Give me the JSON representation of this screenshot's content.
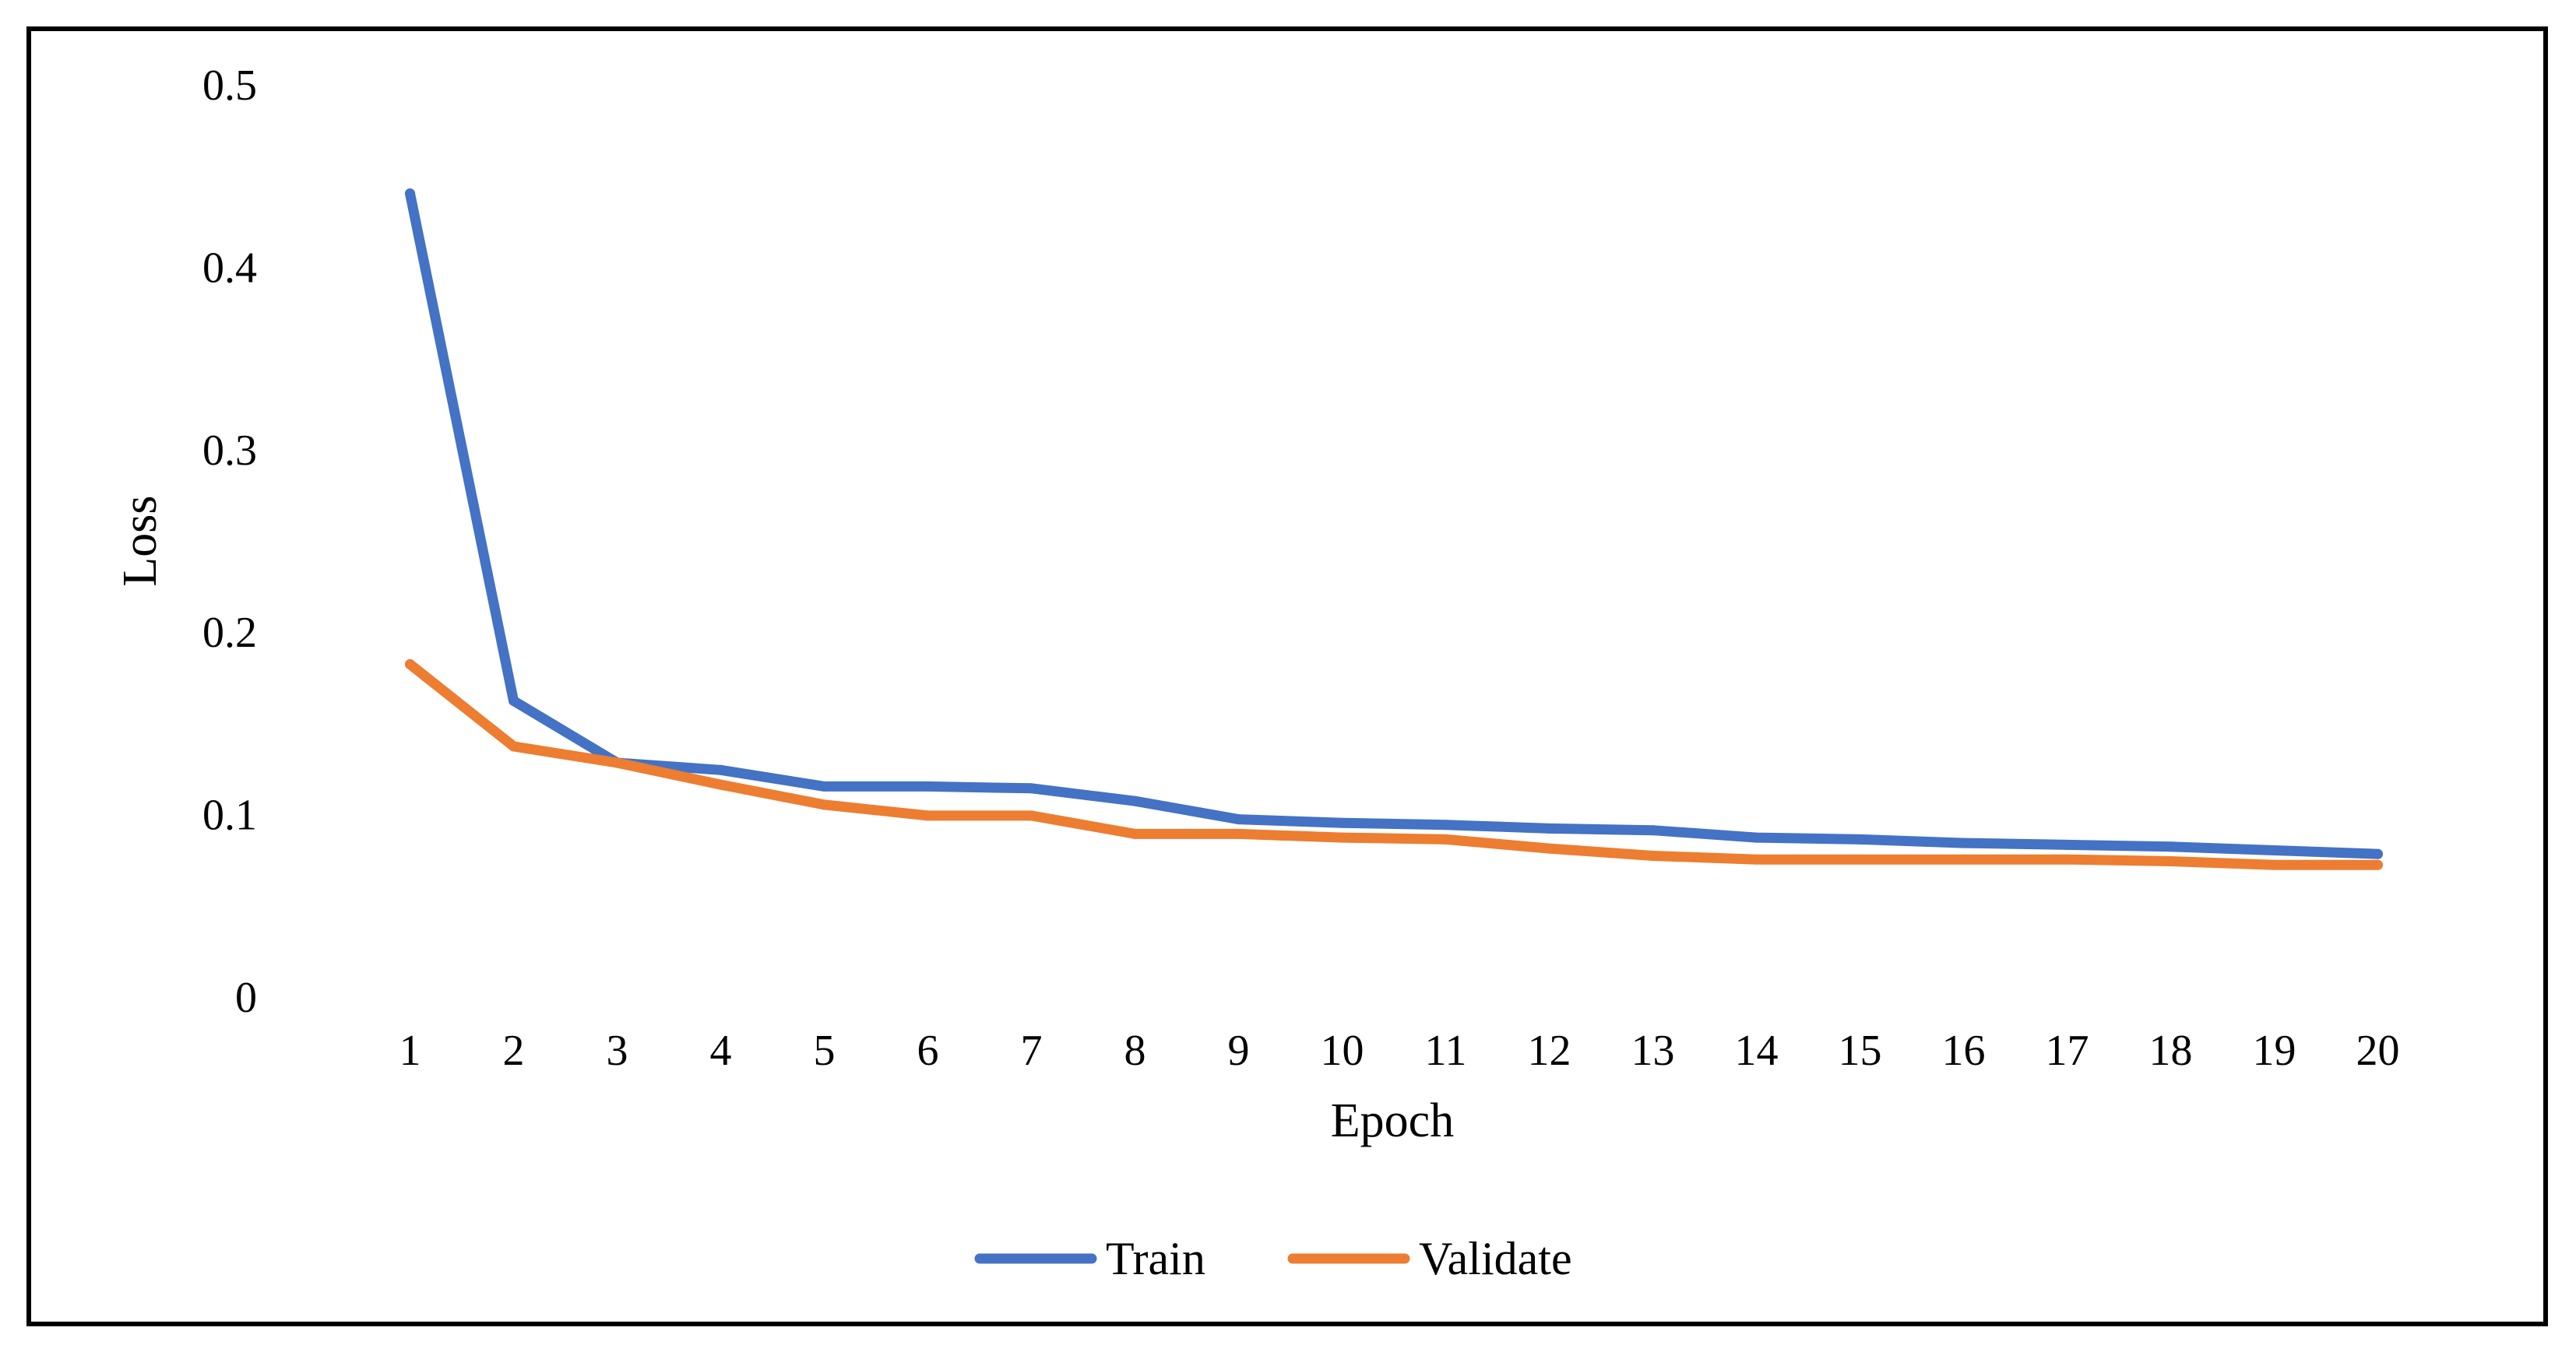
{
  "chart_data": {
    "type": "line",
    "title": "",
    "xlabel": "Epoch",
    "ylabel": "Loss",
    "categories": [
      "1",
      "2",
      "3",
      "4",
      "5",
      "6",
      "7",
      "8",
      "9",
      "10",
      "11",
      "12",
      "13",
      "14",
      "15",
      "16",
      "17",
      "18",
      "19",
      "20"
    ],
    "ylim": [
      0,
      0.5
    ],
    "yticks": [
      "0",
      "0.1",
      "0.2",
      "0.3",
      "0.4",
      "0.5"
    ],
    "grid": false,
    "legend_position": "bottom",
    "series": [
      {
        "name": "Train",
        "color": "#4472C4",
        "values": [
          0.44,
          0.162,
          0.128,
          0.124,
          0.115,
          0.115,
          0.114,
          0.107,
          0.097,
          0.095,
          0.094,
          0.092,
          0.091,
          0.087,
          0.086,
          0.084,
          0.083,
          0.082,
          0.08,
          0.078
        ]
      },
      {
        "name": "Validate",
        "color": "#ED7D31",
        "values": [
          0.182,
          0.137,
          0.128,
          0.116,
          0.105,
          0.099,
          0.099,
          0.089,
          0.089,
          0.087,
          0.086,
          0.081,
          0.077,
          0.075,
          0.075,
          0.075,
          0.075,
          0.074,
          0.072,
          0.072
        ]
      }
    ]
  }
}
